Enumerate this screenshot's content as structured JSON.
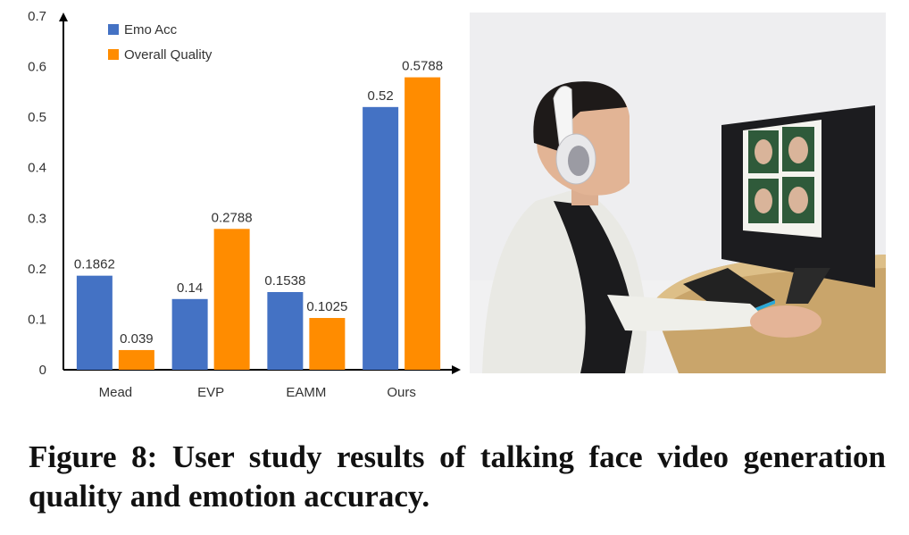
{
  "chart_data": {
    "type": "bar",
    "categories": [
      "Mead",
      "EVP",
      "EAMM",
      "Ours"
    ],
    "series": [
      {
        "name": "Emo Acc",
        "values": [
          0.1862,
          0.14,
          0.1538,
          0.52
        ],
        "labels": [
          "0.1862",
          "0.14",
          "0.1538",
          "0.52"
        ],
        "color": "#4472C4"
      },
      {
        "name": "Overall Quality",
        "values": [
          0.039,
          0.2788,
          0.1025,
          0.5788
        ],
        "labels": [
          "0.039",
          "0.2788",
          "0.1025",
          "0.5788"
        ],
        "color": "#FF8C00"
      }
    ],
    "ylim": [
      0,
      0.7
    ],
    "yticks": [
      "0",
      "0.1",
      "0.2",
      "0.3",
      "0.4",
      "0.5",
      "0.6",
      "0.7"
    ],
    "grid": false,
    "legend_position": "top-left"
  },
  "caption": "Figure 8: User study results of talking face video generation quality and emotion accuracy."
}
